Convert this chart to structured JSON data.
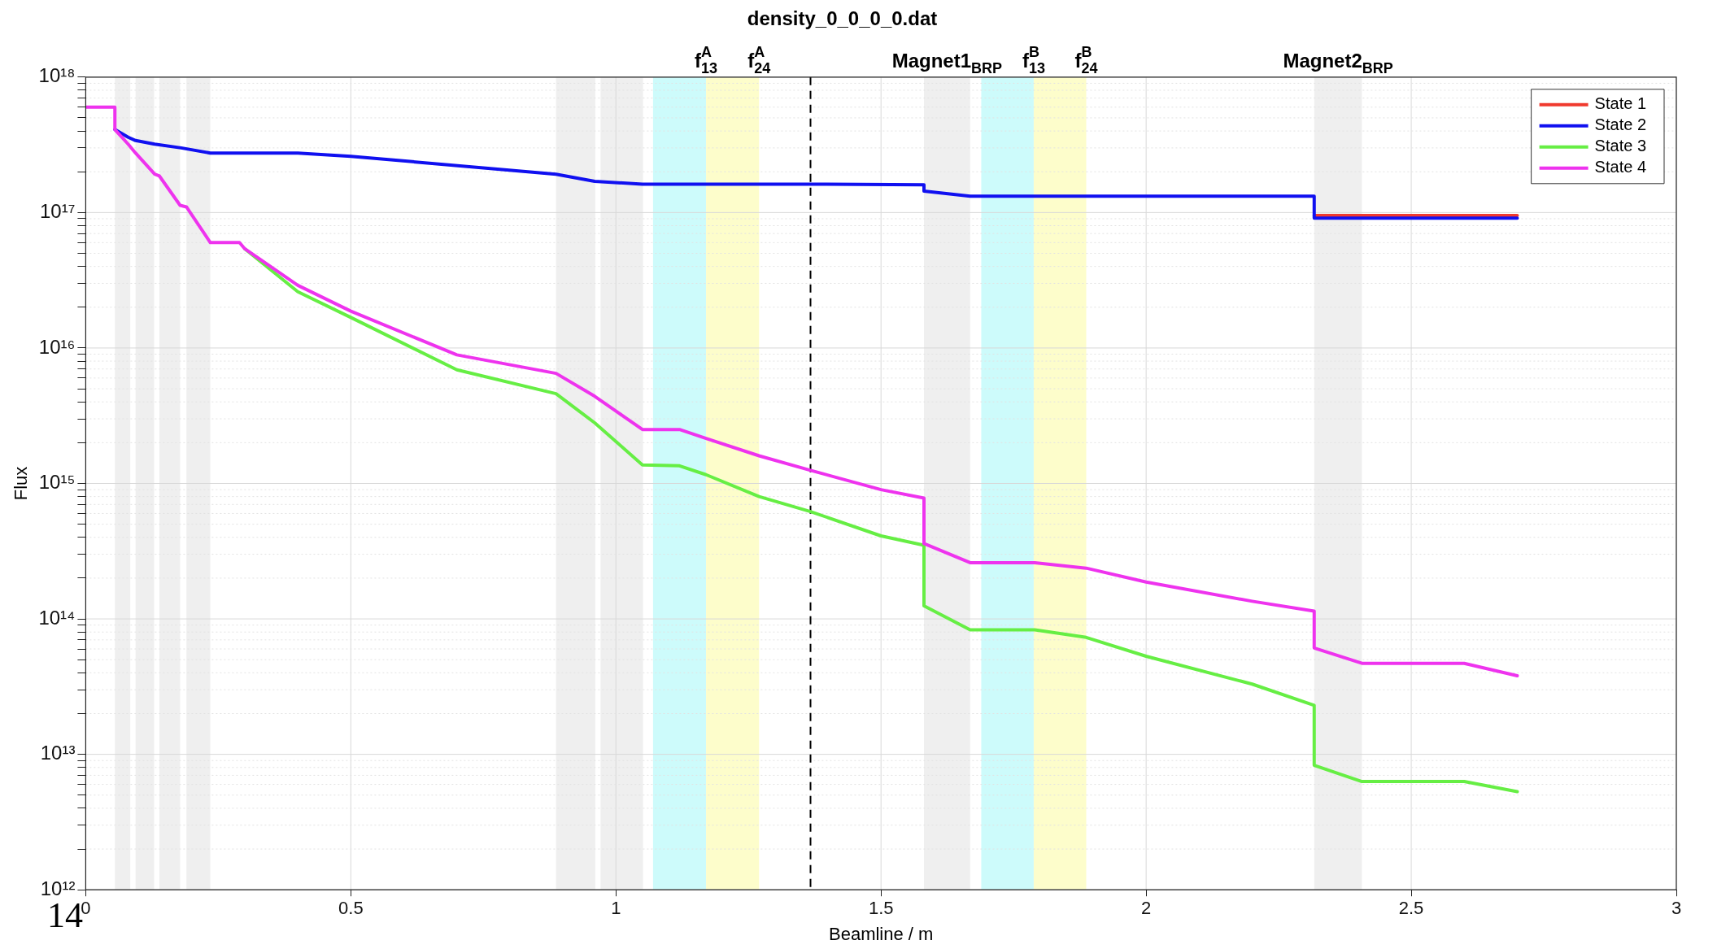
{
  "chart_data": {
    "type": "line",
    "title": "density_0_0_0_0.dat",
    "xlabel": "Beamline / m",
    "ylabel": "Flux",
    "annotations": [
      "14"
    ],
    "xlim": [
      0,
      3
    ],
    "xticks": [
      0,
      0.5,
      1,
      1.5,
      2,
      2.5,
      3
    ],
    "ylim": [
      1000000000000.0,
      1e+18
    ],
    "yticks": [
      {
        "value": 1000000000000.0,
        "label": "10¹²"
      },
      {
        "value": 2000000000000.0,
        "label": null
      },
      {
        "value": 3000000000000.0,
        "label": null
      },
      {
        "value": 4000000000000.0,
        "label": null
      },
      {
        "value": 5000000000000.0,
        "label": null
      },
      {
        "value": 6000000000000.0,
        "label": null
      },
      {
        "value": 7000000000000.0,
        "label": null
      },
      {
        "value": 8000000000000.0,
        "label": null
      },
      {
        "value": 9000000000000.0,
        "label": null
      },
      {
        "value": 10000000000000.0,
        "label": "10¹³"
      },
      {
        "value": 20000000000000.0,
        "label": null
      },
      {
        "value": 30000000000000.0,
        "label": null
      },
      {
        "value": 40000000000000.0,
        "label": null
      },
      {
        "value": 50000000000000.0,
        "label": null
      },
      {
        "value": 60000000000000.0,
        "label": null
      },
      {
        "value": 70000000000000.0,
        "label": null
      },
      {
        "value": 80000000000000.0,
        "label": null
      },
      {
        "value": 90000000000000.0,
        "label": null
      },
      {
        "value": 100000000000000.0,
        "label": "10¹⁴"
      },
      {
        "value": 200000000000000.0,
        "label": null
      },
      {
        "value": 300000000000000.0,
        "label": null
      },
      {
        "value": 400000000000000.0,
        "label": null
      },
      {
        "value": 500000000000000.0,
        "label": null
      },
      {
        "value": 600000000000000.0,
        "label": null
      },
      {
        "value": 700000000000000.0,
        "label": null
      },
      {
        "value": 800000000000000.0,
        "label": null
      },
      {
        "value": 900000000000000.0,
        "label": null
      },
      {
        "value": 1000000000000000.0,
        "label": "10¹⁵"
      },
      {
        "value": 2000000000000000.0,
        "label": null
      },
      {
        "value": 3000000000000000.0,
        "label": null
      },
      {
        "value": 4000000000000000.0,
        "label": null
      },
      {
        "value": 5000000000000000.0,
        "label": null
      },
      {
        "value": 6000000000000000.0,
        "label": null
      },
      {
        "value": 7000000000000000.0,
        "label": null
      },
      {
        "value": 8000000000000000.0,
        "label": null
      },
      {
        "value": 9000000000000000.0,
        "label": null
      },
      {
        "value": 1e+16,
        "label": "10¹⁶"
      },
      {
        "value": 2e+16,
        "label": null
      },
      {
        "value": 3e+16,
        "label": null
      },
      {
        "value": 4e+16,
        "label": null
      },
      {
        "value": 5e+16,
        "label": null
      },
      {
        "value": 6e+16,
        "label": null
      },
      {
        "value": 7e+16,
        "label": null
      },
      {
        "value": 8e+16,
        "label": null
      },
      {
        "value": 9e+16,
        "label": null
      },
      {
        "value": 1e+17,
        "label": "10¹⁷"
      },
      {
        "value": 2e+17,
        "label": null
      },
      {
        "value": 3e+17,
        "label": null
      },
      {
        "value": 4e+17,
        "label": null
      },
      {
        "value": 5e+17,
        "label": null
      },
      {
        "value": 6e+17,
        "label": null
      },
      {
        "value": 7e+17,
        "label": null
      },
      {
        "value": 8e+17,
        "label": null
      },
      {
        "value": 9e+17,
        "label": null
      },
      {
        "value": 1e+18,
        "label": "10¹⁸"
      }
    ],
    "log": "y",
    "grid": true,
    "legend": "top right",
    "marker": "none",
    "line_style": "solid",
    "series": [
      {
        "name": "State 1",
        "color": "#f03a2e",
        "x": [
          2.317,
          2.407,
          2.7
        ],
        "values": [
          9.5e+16,
          9.5e+16,
          9.5e+16
        ]
      },
      {
        "name": "State 2",
        "color": "#1010f0",
        "x": [
          0.055,
          0.08,
          0.094,
          0.13,
          0.18,
          0.235,
          0.4,
          0.5,
          0.887,
          0.96,
          1.05,
          1.367,
          1.581,
          1.581,
          1.668,
          2.317,
          2.317,
          2.7
        ],
        "values": [
          4.1e+17,
          3.6e+17,
          3.4e+17,
          3.2e+17,
          3e+17,
          2.75e+17,
          2.75e+17,
          2.6e+17,
          1.92e+17,
          1.7e+17,
          1.62e+17,
          1.62e+17,
          1.6e+17,
          1.44e+17,
          1.32e+17,
          1.32e+17,
          9.1e+16,
          9.1e+16
        ]
      },
      {
        "name": "State 3",
        "color": "#66ee44",
        "x": [
          0.3,
          0.4,
          0.5,
          0.7,
          0.887,
          0.96,
          1.05,
          1.12,
          1.17,
          1.27,
          1.367,
          1.5,
          1.581,
          1.581,
          1.668,
          1.79,
          1.887,
          2.0,
          2.2,
          2.317,
          2.317,
          2.407,
          2.6,
          2.7
        ],
        "values": [
          5.4e+16,
          2.6e+16,
          1.68e+16,
          6900000000000000.0,
          4600000000000000.0,
          2800000000000000.0,
          1370000000000000.0,
          1350000000000000.0,
          1160000000000000.0,
          800000000000000.0,
          620000000000000.0,
          410000000000000.0,
          350000000000000.0,
          125000000000000.0,
          83000000000000.0,
          83000000000000.0,
          73000000000000.0,
          53000000000000.0,
          33000000000000.0,
          23000000000000.0,
          8300000000000.0,
          6300000000000.0,
          6300000000000.0,
          5300000000000.0
        ]
      },
      {
        "name": "State 4",
        "color": "#ee33ee",
        "x": [
          0,
          0.055,
          0.055,
          0.08,
          0.094,
          0.13,
          0.139,
          0.178,
          0.19,
          0.235,
          0.29,
          0.3,
          0.4,
          0.5,
          0.7,
          0.887,
          0.96,
          1.05,
          1.12,
          1.17,
          1.27,
          1.367,
          1.5,
          1.581,
          1.581,
          1.668,
          1.79,
          1.887,
          2.0,
          2.2,
          2.317,
          2.317,
          2.407,
          2.6,
          2.7
        ],
        "values": [
          6e+17,
          6e+17,
          4.1e+17,
          3.2e+17,
          2.75e+17,
          1.92e+17,
          1.86e+17,
          1.13e+17,
          1.1e+17,
          6e+16,
          6e+16,
          5.4e+16,
          2.9e+16,
          1.87e+16,
          8900000000000000.0,
          6500000000000000.0,
          4400000000000000.0,
          2500000000000000.0,
          2500000000000000.0,
          2150000000000000.0,
          1600000000000000.0,
          1250000000000000.0,
          900000000000000.0,
          780000000000000.0,
          360000000000000.0,
          260000000000000.0,
          260000000000000.0,
          237000000000000.0,
          187000000000000.0,
          135000000000000.0,
          114000000000000.0,
          61000000000000.0,
          47000000000000.0,
          47000000000000.0,
          38000000000000.0
        ]
      }
    ],
    "bands": [
      {
        "axis": "x",
        "from": 0.055,
        "to": 0.084,
        "color": "#efefef"
      },
      {
        "axis": "x",
        "from": 0.094,
        "to": 0.129,
        "color": "#efefef"
      },
      {
        "axis": "x",
        "from": 0.139,
        "to": 0.178,
        "color": "#efefef"
      },
      {
        "axis": "x",
        "from": 0.19,
        "to": 0.235,
        "color": "#efefef"
      },
      {
        "axis": "x",
        "from": 0.887,
        "to": 0.961,
        "color": "#efefef"
      },
      {
        "axis": "x",
        "from": 0.971,
        "to": 1.051,
        "color": "#efefef"
      },
      {
        "axis": "x",
        "from": 1.07,
        "to": 1.17,
        "color": "#cdfbfb",
        "label": "f$^{A}$$_{13}$"
      },
      {
        "axis": "x",
        "from": 1.17,
        "to": 1.27,
        "color": "#fdfdcb",
        "label": "f$^{A}$$_{24}$"
      },
      {
        "axis": "x",
        "from": 1.581,
        "to": 1.668,
        "color": "#efefef",
        "label": "Magnet1$_{BRP}$"
      },
      {
        "axis": "x",
        "from": 1.689,
        "to": 1.788,
        "color": "#cdfbfb",
        "label": "f$^{B}$$_{13}$"
      },
      {
        "axis": "x",
        "from": 1.788,
        "to": 1.887,
        "color": "#fdfdcb",
        "label": "f$^{B}$$_{24}$"
      },
      {
        "axis": "x",
        "from": 2.317,
        "to": 2.407,
        "color": "#efefef",
        "label": "Magnet2$_{BRP}$"
      }
    ],
    "ref_lines": [
      {
        "axis": "x",
        "value": 1.367,
        "color": "#000000",
        "line_style": "dashed"
      }
    ]
  }
}
